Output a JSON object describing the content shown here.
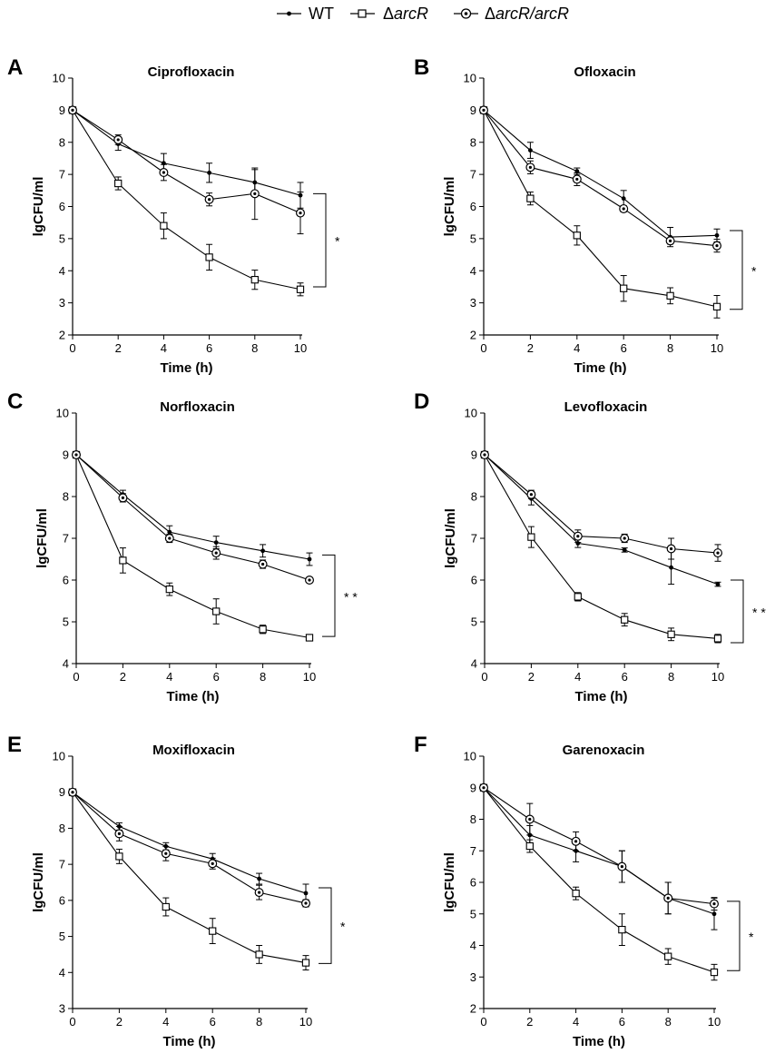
{
  "legend": {
    "wt": "WT",
    "arcR_delta": "Δ",
    "arcR_name": "arcR",
    "comp_delta": "Δ",
    "comp_name": "arcR/arcR"
  },
  "chart_data": [
    {
      "type": "line",
      "panel": "A",
      "title": "Ciprofloxacin",
      "xlabel": "Time (h)",
      "ylabel": "lgCFU/ml",
      "xlim": [
        0,
        10
      ],
      "ylim": [
        2,
        10
      ],
      "x": [
        0,
        2,
        4,
        6,
        8,
        10
      ],
      "series": [
        {
          "name": "WT",
          "values": [
            9.0,
            7.95,
            7.35,
            7.05,
            6.75,
            6.35
          ],
          "errors": [
            0,
            0.2,
            0.3,
            0.3,
            0.4,
            0.4
          ]
        },
        {
          "name": "ΔarcR",
          "values": [
            9.0,
            6.72,
            5.4,
            4.42,
            3.72,
            3.42
          ],
          "errors": [
            0,
            0.2,
            0.4,
            0.4,
            0.3,
            0.2
          ]
        },
        {
          "name": "ΔarcR/arcR",
          "values": [
            9.0,
            8.08,
            7.06,
            6.22,
            6.4,
            5.8
          ],
          "errors": [
            0,
            0.15,
            0.25,
            0.2,
            0.8,
            0.65
          ]
        }
      ],
      "significance": "*",
      "bracket": [
        3.5,
        6.4
      ]
    },
    {
      "type": "line",
      "panel": "B",
      "title": "Ofloxacin",
      "xlabel": "Time (h)",
      "ylabel": "lgCFU/ml",
      "xlim": [
        0,
        10
      ],
      "ylim": [
        2,
        10
      ],
      "x": [
        0,
        2,
        4,
        6,
        8,
        10
      ],
      "series": [
        {
          "name": "WT",
          "values": [
            9.0,
            7.75,
            7.1,
            6.25,
            5.05,
            5.1
          ],
          "errors": [
            0,
            0.25,
            0.1,
            0.25,
            0.3,
            0.2
          ]
        },
        {
          "name": "ΔarcR",
          "values": [
            9.0,
            6.25,
            5.1,
            3.45,
            3.22,
            2.88
          ],
          "errors": [
            0,
            0.2,
            0.3,
            0.4,
            0.25,
            0.35
          ]
        },
        {
          "name": "ΔarcR/arcR",
          "values": [
            9.0,
            7.22,
            6.85,
            5.93,
            4.93,
            4.78
          ],
          "errors": [
            0,
            0.2,
            0.2,
            0.1,
            0.1,
            0.2
          ]
        }
      ],
      "significance": "*",
      "bracket": [
        2.8,
        5.25
      ]
    },
    {
      "type": "line",
      "panel": "C",
      "title": "Norfloxacin",
      "xlabel": "Time (h)",
      "ylabel": "lgCFU/ml",
      "xlim": [
        0,
        10
      ],
      "ylim": [
        4,
        10
      ],
      "x": [
        0,
        2,
        4,
        6,
        8,
        10
      ],
      "series": [
        {
          "name": "WT",
          "values": [
            9.0,
            8.05,
            7.15,
            6.9,
            6.7,
            6.5
          ],
          "errors": [
            0,
            0.1,
            0.15,
            0.15,
            0.15,
            0.15
          ]
        },
        {
          "name": "ΔarcR",
          "values": [
            9.0,
            6.47,
            5.78,
            5.25,
            4.82,
            4.62
          ],
          "errors": [
            0,
            0.3,
            0.15,
            0.3,
            0.1,
            0.05
          ]
        },
        {
          "name": "ΔarcR/arcR",
          "values": [
            9.0,
            7.97,
            7.0,
            6.65,
            6.38,
            6.0
          ],
          "errors": [
            0,
            0.1,
            0.1,
            0.15,
            0.1,
            0.05
          ]
        }
      ],
      "significance": "* *",
      "bracket": [
        4.65,
        6.6
      ]
    },
    {
      "type": "line",
      "panel": "D",
      "title": "Levofloxacin",
      "xlabel": "Time (h)",
      "ylabel": "lgCFU/ml",
      "xlim": [
        0,
        10
      ],
      "ylim": [
        4,
        10
      ],
      "x": [
        0,
        2,
        4,
        6,
        8,
        10
      ],
      "series": [
        {
          "name": "WT",
          "values": [
            9.0,
            7.95,
            6.88,
            6.72,
            6.3,
            5.9
          ],
          "errors": [
            0,
            0.15,
            0.1,
            0.05,
            0.4,
            0.05
          ]
        },
        {
          "name": "ΔarcR",
          "values": [
            9.0,
            7.03,
            5.6,
            5.05,
            4.7,
            4.6
          ],
          "errors": [
            0,
            0.25,
            0.1,
            0.15,
            0.15,
            0.1
          ]
        },
        {
          "name": "ΔarcR/arcR",
          "values": [
            9.0,
            8.05,
            7.05,
            7.0,
            6.75,
            6.65
          ],
          "errors": [
            0,
            0.1,
            0.15,
            0.1,
            0.25,
            0.2
          ]
        }
      ],
      "significance": "* *",
      "bracket": [
        4.5,
        6.0
      ]
    },
    {
      "type": "line",
      "panel": "E",
      "title": "Moxifloxacin",
      "xlabel": "Time (h)",
      "ylabel": "lgCFU/ml",
      "xlim": [
        0,
        10
      ],
      "ylim": [
        3,
        10
      ],
      "x": [
        0,
        2,
        4,
        6,
        8,
        10
      ],
      "series": [
        {
          "name": "WT",
          "values": [
            9.0,
            8.05,
            7.5,
            7.15,
            6.6,
            6.2
          ],
          "errors": [
            0,
            0.1,
            0.1,
            0.15,
            0.15,
            0.25
          ]
        },
        {
          "name": "ΔarcR",
          "values": [
            9.0,
            7.22,
            5.82,
            5.15,
            4.5,
            4.27
          ],
          "errors": [
            0,
            0.2,
            0.25,
            0.35,
            0.25,
            0.2
          ]
        },
        {
          "name": "ΔarcR/arcR",
          "values": [
            9.0,
            7.85,
            7.3,
            7.02,
            6.22,
            5.92
          ],
          "errors": [
            0,
            0.2,
            0.2,
            0.15,
            0.2,
            0.1
          ]
        }
      ],
      "significance": "*",
      "bracket": [
        4.25,
        6.35
      ]
    },
    {
      "type": "line",
      "panel": "F",
      "title": "Garenoxacin",
      "xlabel": "Time (h)",
      "ylabel": "lgCFU/ml",
      "xlim": [
        0,
        10
      ],
      "ylim": [
        2,
        10
      ],
      "x": [
        0,
        2,
        4,
        6,
        8,
        10
      ],
      "series": [
        {
          "name": "WT",
          "values": [
            9.0,
            7.5,
            7.0,
            6.5,
            5.5,
            5.0
          ],
          "errors": [
            0,
            0.3,
            0.35,
            0.5,
            0.5,
            0.5
          ]
        },
        {
          "name": "ΔarcR",
          "values": [
            9.0,
            7.15,
            5.65,
            4.5,
            3.65,
            3.15
          ],
          "errors": [
            0,
            0.2,
            0.2,
            0.5,
            0.25,
            0.25
          ]
        },
        {
          "name": "ΔarcR/arcR",
          "values": [
            9.0,
            8.0,
            7.3,
            6.5,
            5.5,
            5.32
          ],
          "errors": [
            0,
            0.5,
            0.3,
            0.5,
            0.5,
            0.2
          ]
        }
      ],
      "significance": "*",
      "bracket": [
        3.2,
        5.4
      ]
    }
  ]
}
